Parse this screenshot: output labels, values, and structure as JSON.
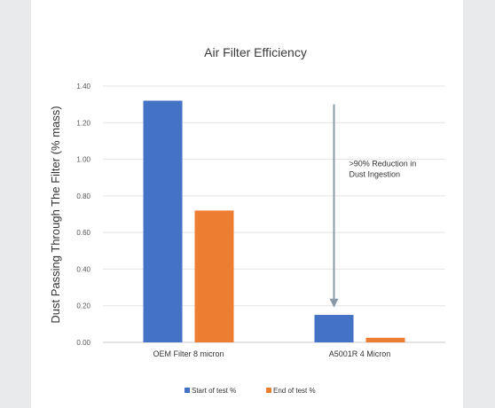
{
  "chart_data": {
    "type": "bar",
    "title": "Air Filter Efficiency",
    "ylabel": "Dust Passing Through The Filter (% mass)",
    "xlabel": "",
    "ylim": [
      0,
      1.4
    ],
    "yticks": [
      "0.00",
      "0.20",
      "0.40",
      "0.60",
      "0.80",
      "1.00",
      "1.20",
      "1.40"
    ],
    "ytick_values": [
      0,
      0.2,
      0.4,
      0.6,
      0.8,
      1.0,
      1.2,
      1.4
    ],
    "grid": true,
    "legend_position": "bottom",
    "categories": [
      "OEM Filter 8 micron",
      "A5001R 4 Micron"
    ],
    "series": [
      {
        "name": "Start of test %",
        "color": "#4472c4",
        "values": [
          1.32,
          0.15
        ]
      },
      {
        "name": "End of test %",
        "color": "#ed7d31",
        "values": [
          0.72,
          0.025
        ]
      }
    ],
    "annotation": {
      "lines": [
        ">90% Reduction in",
        "Dust Ingestion"
      ],
      "arrow_from": 1.3,
      "arrow_to": 0.19,
      "arrow_color": "#8a9ba8"
    }
  }
}
